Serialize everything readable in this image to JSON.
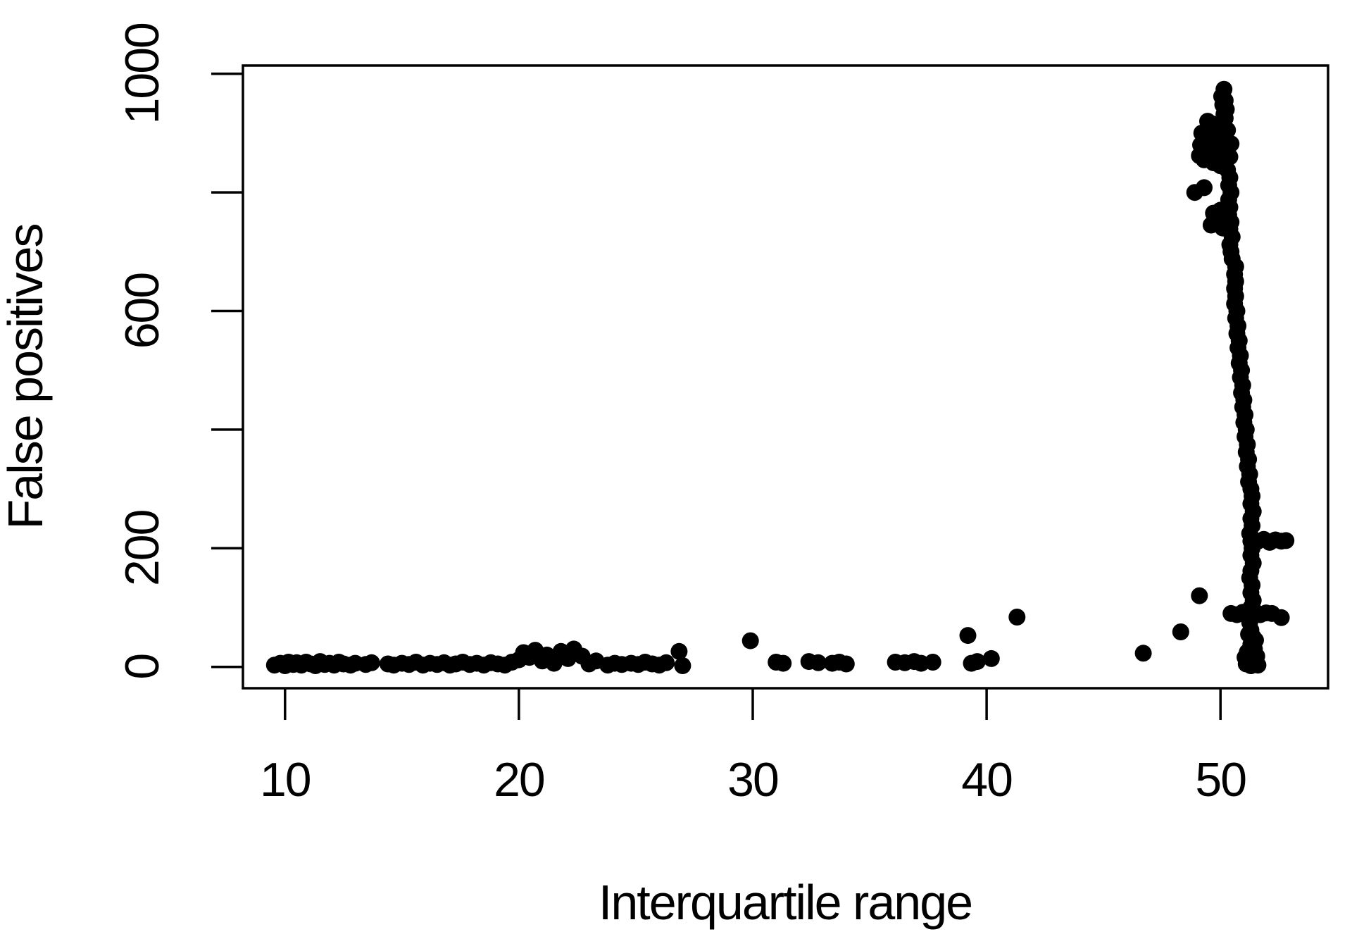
{
  "chart_data": {
    "type": "scatter",
    "title": "",
    "xlabel": "Interquartile range",
    "ylabel": "False positives",
    "xlim": [
      8.2,
      54.6
    ],
    "ylim": [
      -36,
      1014
    ],
    "x_ticks": [
      10,
      20,
      30,
      40,
      50
    ],
    "y_ticks": [
      0,
      200,
      400,
      600,
      800,
      1000
    ],
    "y_tick_labels": [
      0,
      200,
      600,
      1000
    ],
    "grid": false,
    "legend_position": "none",
    "marker": "filled-circle",
    "marker_radius_px": 12,
    "colors": {
      "points": "#000000",
      "axis": "#000000",
      "background": "#ffffff"
    },
    "points": [
      [
        9.55,
        3
      ],
      [
        9.8,
        6
      ],
      [
        10.0,
        2
      ],
      [
        10.15,
        8
      ],
      [
        10.35,
        4
      ],
      [
        10.5,
        7
      ],
      [
        10.7,
        3
      ],
      [
        10.9,
        8
      ],
      [
        11.1,
        5
      ],
      [
        11.3,
        2
      ],
      [
        11.5,
        9
      ],
      [
        11.7,
        4
      ],
      [
        11.9,
        6
      ],
      [
        12.1,
        3
      ],
      [
        12.3,
        8
      ],
      [
        12.5,
        5
      ],
      [
        12.8,
        3
      ],
      [
        13.0,
        6
      ],
      [
        13.45,
        4
      ],
      [
        13.7,
        7
      ],
      [
        14.4,
        5
      ],
      [
        14.65,
        3
      ],
      [
        15.0,
        6
      ],
      [
        15.3,
        4
      ],
      [
        15.6,
        8
      ],
      [
        15.9,
        3
      ],
      [
        16.2,
        6
      ],
      [
        16.5,
        4
      ],
      [
        16.8,
        7
      ],
      [
        17.05,
        3
      ],
      [
        17.3,
        5
      ],
      [
        17.6,
        8
      ],
      [
        17.9,
        4
      ],
      [
        18.2,
        6
      ],
      [
        18.5,
        3
      ],
      [
        18.8,
        7
      ],
      [
        19.1,
        5
      ],
      [
        19.4,
        3
      ],
      [
        19.7,
        8
      ],
      [
        20.0,
        12
      ],
      [
        20.2,
        24
      ],
      [
        20.45,
        16
      ],
      [
        20.7,
        28
      ],
      [
        21.0,
        10
      ],
      [
        21.2,
        20
      ],
      [
        21.5,
        6
      ],
      [
        21.8,
        26
      ],
      [
        22.1,
        14
      ],
      [
        22.35,
        30
      ],
      [
        22.7,
        18
      ],
      [
        23.0,
        5
      ],
      [
        23.3,
        10
      ],
      [
        23.8,
        3
      ],
      [
        24.1,
        6
      ],
      [
        24.4,
        4
      ],
      [
        24.8,
        6
      ],
      [
        25.1,
        4
      ],
      [
        25.4,
        8
      ],
      [
        25.7,
        5
      ],
      [
        26.0,
        3
      ],
      [
        26.3,
        7
      ],
      [
        26.85,
        26
      ],
      [
        27.0,
        2
      ],
      [
        29.9,
        44
      ],
      [
        31.0,
        8
      ],
      [
        31.3,
        6
      ],
      [
        32.4,
        9
      ],
      [
        32.8,
        7
      ],
      [
        33.4,
        6
      ],
      [
        33.7,
        8
      ],
      [
        34.0,
        5
      ],
      [
        36.1,
        8
      ],
      [
        36.5,
        7
      ],
      [
        36.9,
        9
      ],
      [
        37.2,
        6
      ],
      [
        37.7,
        8
      ],
      [
        39.2,
        53
      ],
      [
        39.35,
        6
      ],
      [
        39.6,
        9
      ],
      [
        40.2,
        14
      ],
      [
        41.3,
        84
      ],
      [
        46.7,
        23
      ],
      [
        48.3,
        59
      ],
      [
        49.1,
        120
      ],
      [
        52.6,
        83
      ],
      [
        51.1,
        5
      ],
      [
        51.2,
        12
      ],
      [
        51.5,
        6
      ],
      [
        51.55,
        18
      ],
      [
        51.15,
        25
      ],
      [
        51.45,
        30
      ],
      [
        51.05,
        16
      ],
      [
        51.6,
        3
      ],
      [
        51.5,
        45
      ],
      [
        51.2,
        55
      ],
      [
        51.3,
        2
      ],
      [
        51.45,
        8
      ],
      [
        51.25,
        15
      ],
      [
        51.35,
        25
      ],
      [
        51.3,
        38
      ],
      [
        51.4,
        50
      ],
      [
        51.3,
        62
      ],
      [
        51.25,
        75
      ],
      [
        51.35,
        88
      ],
      [
        51.3,
        100
      ],
      [
        51.4,
        112
      ],
      [
        51.3,
        125
      ],
      [
        51.35,
        138
      ],
      [
        51.25,
        150
      ],
      [
        51.3,
        162
      ],
      [
        51.4,
        175
      ],
      [
        51.3,
        188
      ],
      [
        51.35,
        200
      ],
      [
        51.3,
        212
      ],
      [
        51.25,
        225
      ],
      [
        51.35,
        238
      ],
      [
        51.3,
        250
      ],
      [
        51.4,
        262
      ],
      [
        51.3,
        275
      ],
      [
        51.35,
        288
      ],
      [
        51.3,
        300
      ],
      [
        51.2,
        312
      ],
      [
        51.25,
        325
      ],
      [
        51.15,
        338
      ],
      [
        51.2,
        350
      ],
      [
        51.1,
        362
      ],
      [
        51.15,
        375
      ],
      [
        51.05,
        388
      ],
      [
        51.1,
        400
      ],
      [
        51.0,
        412
      ],
      [
        51.05,
        425
      ],
      [
        50.95,
        438
      ],
      [
        51.0,
        450
      ],
      [
        50.9,
        462
      ],
      [
        50.95,
        475
      ],
      [
        50.85,
        488
      ],
      [
        50.9,
        500
      ],
      [
        50.8,
        512
      ],
      [
        50.85,
        525
      ],
      [
        50.75,
        538
      ],
      [
        50.8,
        550
      ],
      [
        50.7,
        562
      ],
      [
        50.75,
        575
      ],
      [
        50.65,
        588
      ],
      [
        50.7,
        600
      ],
      [
        50.6,
        612
      ],
      [
        50.65,
        625
      ],
      [
        50.6,
        638
      ],
      [
        50.65,
        650
      ],
      [
        50.6,
        662
      ],
      [
        50.65,
        675
      ],
      [
        50.5,
        688
      ],
      [
        50.45,
        700
      ],
      [
        50.4,
        712
      ],
      [
        50.5,
        725
      ],
      [
        50.4,
        738
      ],
      [
        50.45,
        750
      ],
      [
        50.35,
        762
      ],
      [
        50.4,
        775
      ],
      [
        50.35,
        788
      ],
      [
        50.45,
        800
      ],
      [
        50.35,
        812
      ],
      [
        50.4,
        825
      ],
      [
        49.6,
        745
      ],
      [
        49.9,
        755
      ],
      [
        50.1,
        740
      ],
      [
        49.7,
        765
      ],
      [
        50.0,
        770
      ],
      [
        48.9,
        800
      ],
      [
        49.3,
        808
      ],
      [
        50.3,
        838
      ],
      [
        50.0,
        845
      ],
      [
        49.7,
        850
      ],
      [
        49.3,
        855
      ],
      [
        49.1,
        862
      ],
      [
        50.4,
        860
      ],
      [
        50.1,
        868
      ],
      [
        49.8,
        872
      ],
      [
        49.4,
        875
      ],
      [
        49.15,
        880
      ],
      [
        50.45,
        882
      ],
      [
        50.2,
        888
      ],
      [
        49.9,
        892
      ],
      [
        49.5,
        895
      ],
      [
        49.2,
        900
      ],
      [
        50.3,
        905
      ],
      [
        50.0,
        910
      ],
      [
        49.7,
        915
      ],
      [
        49.45,
        920
      ],
      [
        50.2,
        925
      ],
      [
        50.15,
        932
      ],
      [
        50.25,
        940
      ],
      [
        50.1,
        948
      ],
      [
        50.2,
        955
      ],
      [
        50.05,
        962
      ],
      [
        50.15,
        974
      ],
      [
        51.6,
        212
      ],
      [
        51.85,
        215
      ],
      [
        52.1,
        210
      ],
      [
        52.35,
        214
      ],
      [
        52.6,
        212
      ],
      [
        52.8,
        213
      ],
      [
        50.45,
        90
      ],
      [
        50.7,
        88
      ],
      [
        50.95,
        92
      ],
      [
        51.2,
        89
      ],
      [
        51.45,
        94
      ],
      [
        51.7,
        88
      ],
      [
        51.95,
        91
      ],
      [
        52.2,
        90
      ]
    ]
  }
}
